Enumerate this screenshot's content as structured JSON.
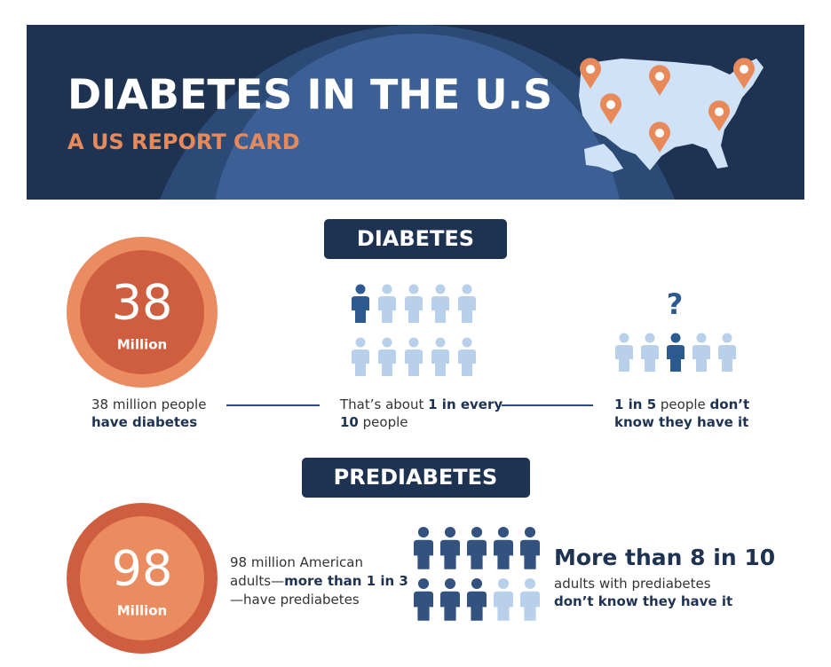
{
  "header": {
    "title": "DIABETES IN THE U.S",
    "subtitle": "A US REPORT CARD"
  },
  "diabetes": {
    "heading": "DIABETES",
    "figure": {
      "number": "38",
      "unit": "Million"
    },
    "stats": [
      {
        "lines": [
          [
            {
              "text": "38 million people"
            }
          ],
          [
            {
              "text": "have diabetes",
              "bold": true
            }
          ]
        ]
      },
      {
        "lines": [
          [
            {
              "text": "That’s about "
            },
            {
              "text": "1 in every",
              "bold": true
            }
          ],
          [
            {
              "text": "10",
              "bold": true
            },
            {
              "text": " people"
            }
          ]
        ]
      },
      {
        "lines": [
          [
            {
              "text": "1 in 5",
              "bold": true
            },
            {
              "text": " people "
            },
            {
              "text": "don’t",
              "bold": true
            }
          ],
          [
            {
              "text": "know they have it",
              "bold": true
            }
          ]
        ]
      }
    ],
    "question": "?"
  },
  "prediabetes": {
    "heading": "PREDIABETES",
    "figure": {
      "number": "98",
      "unit": "Million"
    },
    "stats": [
      {
        "lines": [
          [
            {
              "text": "98 million American"
            }
          ],
          [
            {
              "text": "adults—"
            },
            {
              "text": "more than 1 in 3",
              "bold": true
            }
          ],
          [
            {
              "text": "—have prediabetes"
            }
          ]
        ]
      },
      {
        "lines": [
          [
            {
              "text": "adults with prediabetes"
            }
          ],
          [
            {
              "text": "don’t know they have it",
              "bold": true
            }
          ]
        ]
      }
    ],
    "headline": "More than 8 in 10"
  }
}
